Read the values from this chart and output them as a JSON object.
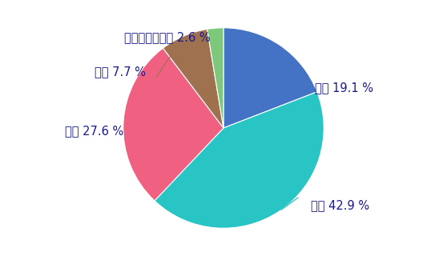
{
  "labels": [
    "大一",
    "大二",
    "大三",
    "大四",
    "已毕业及研究生"
  ],
  "values": [
    19.1,
    42.9,
    27.6,
    7.7,
    2.6
  ],
  "colors": [
    "#4472C4",
    "#29C4C4",
    "#F06080",
    "#A0714F",
    "#7DC87D"
  ],
  "line_colors": [
    "#4472C4",
    "#29C4C4",
    "#F06080",
    "#A0714F",
    "#7DC87D"
  ],
  "background_color": "#ffffff",
  "startangle": 90,
  "font_size": 10.5,
  "text_color": "#1a1a8c"
}
